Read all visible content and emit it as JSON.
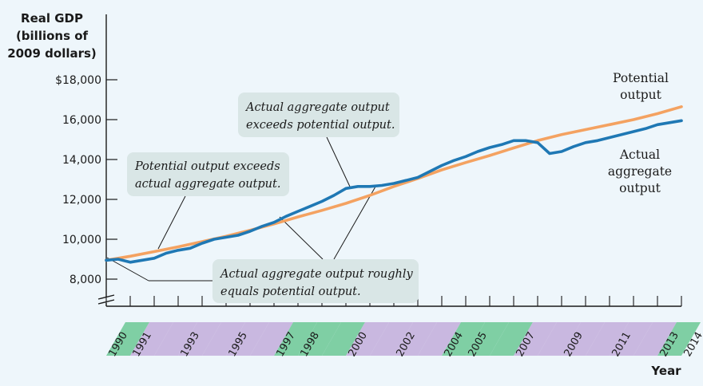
{
  "chart_data": {
    "type": "line",
    "ylabel_lines": [
      "Real GDP",
      "(billions of",
      "2009 dollars)"
    ],
    "xlabel": "Year",
    "ylim": [
      7000,
      18500
    ],
    "yticks": [
      8000,
      10000,
      12000,
      14000,
      16000,
      18000
    ],
    "ytick_labels": [
      "8,000",
      "10,000",
      "12,000",
      "14,000",
      "16,000",
      "$18,000"
    ],
    "xlim": [
      1990,
      2014
    ],
    "year_labels": [
      "1990",
      "1991",
      "1993",
      "1995",
      "1997",
      "1998",
      "2000",
      "2002",
      "2004",
      "2005",
      "2007",
      "2009",
      "2011",
      "2013",
      "2014"
    ],
    "recessions": [
      [
        1990,
        1991
      ],
      [
        1997,
        2000
      ],
      [
        2004,
        2007
      ],
      [
        2013,
        2014
      ]
    ],
    "colors": {
      "potential": "#f4a261",
      "actual": "#1f78b4",
      "band_green": "#7fcfa4",
      "band_purple": "#c9b8e0",
      "box": "#d9e6e6"
    },
    "series": [
      {
        "name": "Potential output",
        "label_lines": [
          "Potential",
          "output"
        ],
        "x": [
          1990,
          1991,
          1992,
          1993,
          1994,
          1995,
          1996,
          1997,
          1998,
          1999,
          2000,
          2001,
          2002,
          2003,
          2004,
          2005,
          2006,
          2007,
          2008,
          2009,
          2010,
          2011,
          2012,
          2013,
          2014
        ],
        "values": [
          8950,
          9150,
          9380,
          9620,
          9880,
          10150,
          10450,
          10770,
          11120,
          11450,
          11800,
          12200,
          12650,
          13050,
          13480,
          13850,
          14200,
          14580,
          14950,
          15250,
          15500,
          15750,
          16000,
          16300,
          16650
        ]
      },
      {
        "name": "Actual aggregate output",
        "label_lines": [
          "Actual",
          "aggregate",
          "output"
        ],
        "x": [
          1990,
          1990.5,
          1991,
          1991.5,
          1992,
          1992.5,
          1993,
          1993.5,
          1994,
          1994.5,
          1995,
          1995.5,
          1996,
          1996.5,
          1997,
          1997.5,
          1998,
          1998.5,
          1999,
          1999.5,
          2000,
          2000.5,
          2001,
          2001.5,
          2002,
          2002.5,
          2003,
          2003.5,
          2004,
          2004.5,
          2005,
          2005.5,
          2006,
          2006.5,
          2007,
          2007.5,
          2008,
          2008.5,
          2009,
          2009.5,
          2010,
          2010.5,
          2011,
          2011.5,
          2012,
          2012.5,
          2013,
          2013.5,
          2014
        ],
        "values": [
          8950,
          9000,
          8850,
          8950,
          9050,
          9300,
          9450,
          9550,
          9800,
          10000,
          10100,
          10200,
          10400,
          10650,
          10850,
          11150,
          11400,
          11650,
          11900,
          12200,
          12550,
          12650,
          12650,
          12700,
          12800,
          12950,
          13100,
          13400,
          13700,
          13950,
          14150,
          14400,
          14600,
          14750,
          14950,
          14950,
          14850,
          14300,
          14400,
          14650,
          14850,
          14950,
          15100,
          15250,
          15400,
          15550,
          15750,
          15850,
          15950
        ]
      }
    ],
    "annotations": [
      {
        "lines": [
          "Actual aggregate output",
          "exceeds potential output."
        ]
      },
      {
        "lines": [
          "Potential output exceeds",
          "actual aggregate output."
        ]
      },
      {
        "lines": [
          "Actual aggregate output roughly",
          "equals potential output."
        ]
      }
    ]
  }
}
